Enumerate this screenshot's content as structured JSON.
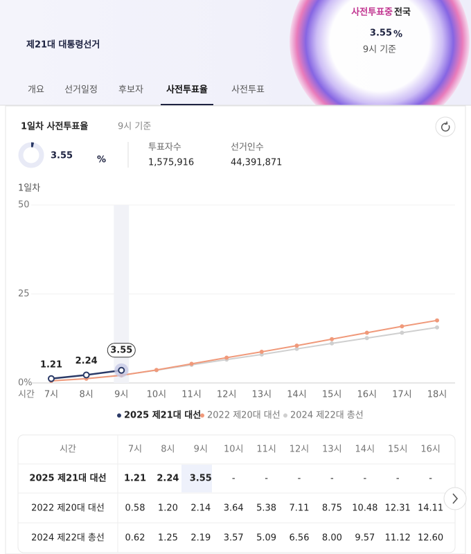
{
  "header": {
    "title": "제21대 대통령선거",
    "status": "사전투표중",
    "region": "전국",
    "rate": 3.55,
    "unit": "%",
    "basis": "9시 기준"
  },
  "tabs": [
    "개요",
    "선거일정",
    "후보자",
    "사전투표율",
    "사전투표"
  ],
  "active_tab": 3,
  "summary": {
    "title": "1일차 사전투표율",
    "basis": "9시 기준",
    "rate": 3.55,
    "unit": "%",
    "voters_label": "투표자수",
    "voters": "1,575,916",
    "electorate_label": "선거인수",
    "electorate": "44,391,871"
  },
  "chart_data": {
    "type": "line",
    "ylabel": "1일차",
    "xlabel": "시간",
    "categories": [
      "7시",
      "8시",
      "9시",
      "10시",
      "11시",
      "12시",
      "13시",
      "14시",
      "15시",
      "16시",
      "17시",
      "18시"
    ],
    "series": [
      {
        "name": "2025 제21대 대선",
        "color": "#2b3a67",
        "values": [
          1.21,
          2.24,
          3.55,
          null,
          null,
          null,
          null,
          null,
          null,
          null,
          null,
          null
        ],
        "value_labels": [
          "1.21",
          "2.24",
          "3.55",
          null,
          null,
          null,
          null,
          null,
          null,
          null,
          null,
          null
        ]
      },
      {
        "name": "2022 제20대 대선",
        "color": "#f0997a",
        "values": [
          0.58,
          1.2,
          2.14,
          3.64,
          5.38,
          7.11,
          8.75,
          10.48,
          12.31,
          14.11,
          15.9,
          17.57
        ]
      },
      {
        "name": "2024 제22대 총선",
        "color": "#cfcfcf",
        "values": [
          0.62,
          1.25,
          2.19,
          3.57,
          5.09,
          6.56,
          8.0,
          9.57,
          11.12,
          12.6,
          14.1,
          15.6
        ]
      }
    ],
    "ylim": [
      0,
      50
    ],
    "yticks": [
      {
        "value": 0,
        "label": "0%"
      },
      25,
      50
    ],
    "grid": true
  },
  "table": {
    "header": [
      "시간",
      "7시",
      "8시",
      "9시",
      "10시",
      "11시",
      "12시",
      "13시",
      "14시",
      "15시",
      "16시"
    ],
    "rows": [
      [
        "2025 제21대 대선",
        "1.21",
        "2.24",
        "3.55",
        "-",
        "-",
        "-",
        "-",
        "-",
        "-",
        "-"
      ],
      [
        "2022 제20대 대선",
        "0.58",
        "1.20",
        "2.14",
        "3.64",
        "5.38",
        "7.11",
        "8.75",
        "10.48",
        "12.31",
        "14.11"
      ],
      [
        "2024 제22대 총선",
        "0.62",
        "1.25",
        "2.19",
        "3.57",
        "5.09",
        "6.56",
        "8.00",
        "9.57",
        "11.12",
        "12.60"
      ]
    ]
  }
}
